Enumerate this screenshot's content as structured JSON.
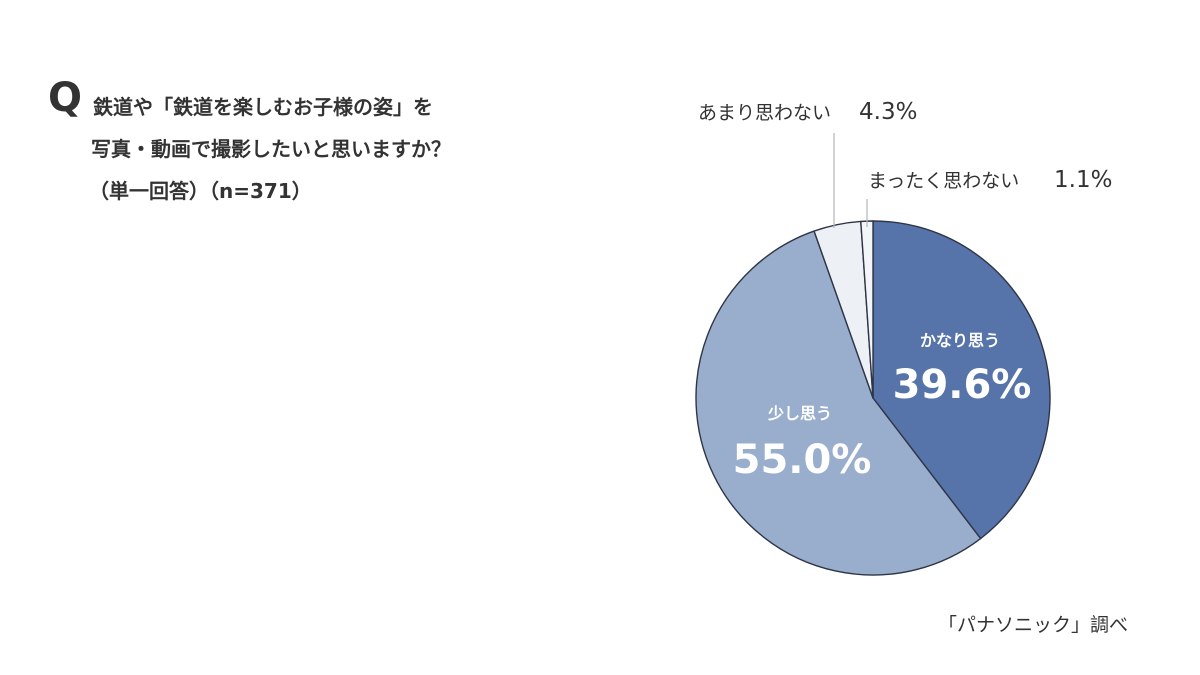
{
  "question": {
    "mark": "Q",
    "lines": [
      "鉄道や「鉄道を楽しむお子様の姿」を",
      "写真・動画で撮影したいと思いますか？",
      "（単一回答）（n=371）"
    ]
  },
  "source": "「パナソニック」調べ",
  "chart_data": {
    "type": "pie",
    "title": "",
    "slices": [
      {
        "label": "かなり思う",
        "value": 39.6,
        "value_label": "39.6%",
        "color": "#5674a9",
        "label_position": "inside"
      },
      {
        "label": "少し思う",
        "value": 55.0,
        "value_label": "55.0%",
        "color": "#99adcc",
        "label_position": "inside"
      },
      {
        "label": "あまり思わない",
        "value": 4.3,
        "value_label": "4.3%",
        "color": "#edf0f5",
        "label_position": "outside-callout"
      },
      {
        "label": "まったく思わない",
        "value": 1.1,
        "value_label": "1.1%",
        "color": "#f4f5f8",
        "label_position": "outside-callout"
      }
    ],
    "start_angle": "12 o'clock",
    "direction": "clockwise",
    "stroke_color": "#2e3547",
    "callout_line_color": "#b0b4bd"
  }
}
